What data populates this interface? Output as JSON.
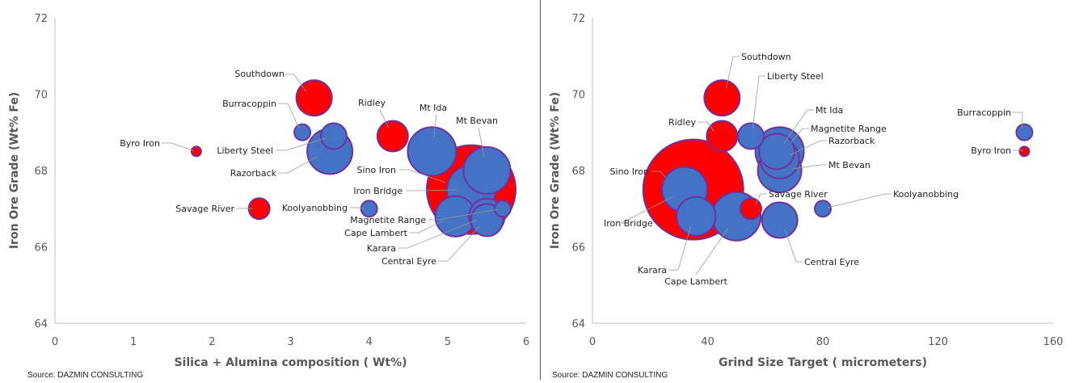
{
  "colors": {
    "red_series": "#ff0000",
    "blue_series": "#4472c4",
    "bubble_outline": "#7030a0"
  },
  "chart_data": [
    {
      "type": "scatter",
      "xlabel": "Silica + Alumina composition ( Wt%)",
      "ylabel": "Iron Ore Grade (Wt% Fe)",
      "xlim": [
        0,
        6
      ],
      "ylim": [
        64,
        72
      ],
      "xticks": [
        "0",
        "1",
        "2",
        "3",
        "4",
        "5",
        "6"
      ],
      "yticks": [
        "64",
        "66",
        "68",
        "70",
        "72"
      ],
      "source": "Source: DAZMIN CONSULTING",
      "points": [
        {
          "name": "Sino Iron",
          "x": 5.3,
          "y": 67.5,
          "r": 55,
          "color": "red"
        },
        {
          "name": "Iron Bridge",
          "x": 5.3,
          "y": 67.5,
          "r": 30,
          "color": "blue"
        },
        {
          "name": "Mt Bevan",
          "x": 5.5,
          "y": 68.0,
          "r": 29,
          "color": "blue"
        },
        {
          "name": "Mt Ida",
          "x": 4.8,
          "y": 68.5,
          "r": 30,
          "color": "blue"
        },
        {
          "name": "Cape Lambert",
          "x": 5.1,
          "y": 66.8,
          "r": 25,
          "color": "blue"
        },
        {
          "name": "Karara",
          "x": 5.5,
          "y": 66.8,
          "r": 22,
          "color": "blue"
        },
        {
          "name": "Central Eyre",
          "x": 5.5,
          "y": 66.7,
          "r": 20,
          "color": "blue"
        },
        {
          "name": "Magnetite Range",
          "x": 5.7,
          "y": 67.0,
          "r": 10,
          "color": "blue"
        },
        {
          "name": "Razorback",
          "x": 3.5,
          "y": 68.5,
          "r": 28,
          "color": "blue"
        },
        {
          "name": "Liberty Steel",
          "x": 3.55,
          "y": 68.9,
          "r": 16,
          "color": "blue"
        },
        {
          "name": "Southdown",
          "x": 3.3,
          "y": 69.9,
          "r": 22,
          "color": "red"
        },
        {
          "name": "Burracoppin",
          "x": 3.15,
          "y": 69.0,
          "r": 10,
          "color": "blue"
        },
        {
          "name": "Ridley",
          "x": 4.3,
          "y": 68.9,
          "r": 19,
          "color": "red"
        },
        {
          "name": "Koolyanobbing",
          "x": 4.0,
          "y": 67.0,
          "r": 10,
          "color": "blue"
        },
        {
          "name": "Savage River",
          "x": 2.6,
          "y": 67.0,
          "r": 13,
          "color": "red"
        },
        {
          "name": "Byro Iron",
          "x": 1.8,
          "y": 68.5,
          "r": 6,
          "color": "red"
        }
      ]
    },
    {
      "type": "scatter",
      "xlabel": "Grind Size Target ( micrometers)",
      "ylabel": "Iron Ore Grade (Wt% Fe)",
      "xlim": [
        0,
        160
      ],
      "ylim": [
        64,
        72
      ],
      "xticks": [
        "0",
        "40",
        "80",
        "120",
        "160"
      ],
      "yticks": [
        "64",
        "66",
        "68",
        "70",
        "72"
      ],
      "source": "Source: DAZMIN CONSULTING",
      "points": [
        {
          "name": "Sino Iron",
          "x": 35,
          "y": 67.5,
          "r": 62,
          "color": "red"
        },
        {
          "name": "Iron Bridge",
          "x": 32,
          "y": 67.5,
          "r": 28,
          "color": "blue"
        },
        {
          "name": "Karara",
          "x": 36,
          "y": 66.8,
          "r": 24,
          "color": "blue"
        },
        {
          "name": "Cape Lambert",
          "x": 50,
          "y": 66.8,
          "r": 30,
          "color": "blue"
        },
        {
          "name": "Southdown",
          "x": 45,
          "y": 69.9,
          "r": 22,
          "color": "red"
        },
        {
          "name": "Ridley",
          "x": 45,
          "y": 68.9,
          "r": 19,
          "color": "red"
        },
        {
          "name": "Liberty Steel",
          "x": 55,
          "y": 68.9,
          "r": 16,
          "color": "blue"
        },
        {
          "name": "Savage River",
          "x": 55,
          "y": 67.0,
          "r": 13,
          "color": "red"
        },
        {
          "name": "Mt Bevan",
          "x": 65,
          "y": 68.0,
          "r": 27,
          "color": "blue"
        },
        {
          "name": "Razorback",
          "x": 65,
          "y": 68.3,
          "r": 24,
          "color": "blue"
        },
        {
          "name": "Magnetite Range",
          "x": 65,
          "y": 68.5,
          "r": 30,
          "color": "blue"
        },
        {
          "name": "Mt Ida",
          "x": 64,
          "y": 68.5,
          "r": 22,
          "color": "blue"
        },
        {
          "name": "Central Eyre",
          "x": 65,
          "y": 66.7,
          "r": 22,
          "color": "blue"
        },
        {
          "name": "Koolyanobbing",
          "x": 80,
          "y": 67.0,
          "r": 10,
          "color": "blue"
        },
        {
          "name": "Burracoppin",
          "x": 150,
          "y": 69.0,
          "r": 10,
          "color": "blue"
        },
        {
          "name": "Byro Iron",
          "x": 150,
          "y": 68.5,
          "r": 6,
          "color": "red"
        }
      ]
    }
  ]
}
